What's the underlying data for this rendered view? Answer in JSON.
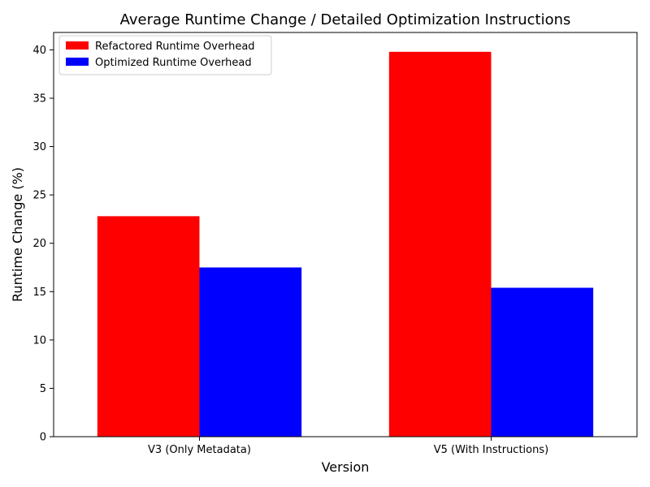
{
  "chart_data": {
    "type": "bar",
    "title": "Average Runtime Change / Detailed Optimization Instructions",
    "xlabel": "Version",
    "ylabel": "Runtime Change (%)",
    "categories": [
      "V3 (Only Metadata)",
      "V5 (With Instructions)"
    ],
    "series": [
      {
        "name": "Refactored Runtime Overhead",
        "values": [
          22.8,
          39.8
        ],
        "color": "#ff0000"
      },
      {
        "name": "Optimized Runtime Overhead",
        "values": [
          17.5,
          15.4
        ],
        "color": "#0000ff"
      }
    ],
    "ylim": [
      0,
      41.8
    ],
    "yticks": [
      0,
      5,
      10,
      15,
      20,
      25,
      30,
      35,
      40
    ],
    "grid": false,
    "legend_position": "top-left"
  }
}
